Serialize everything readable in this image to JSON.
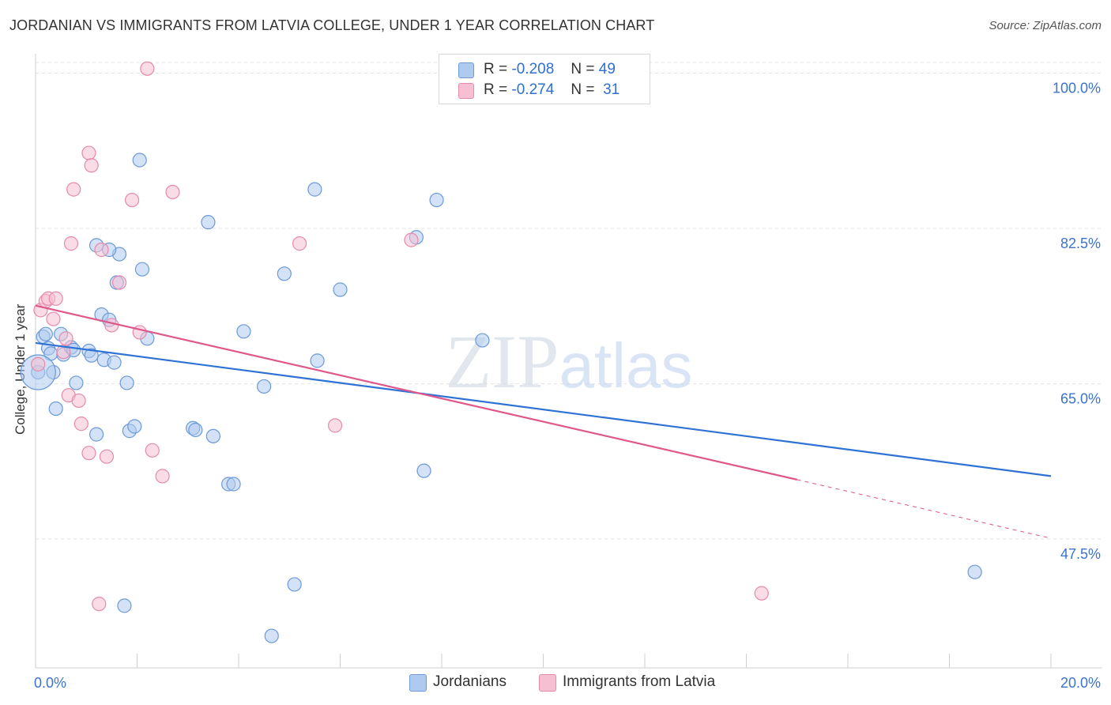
{
  "chart_data": {
    "type": "scatter",
    "title": "JORDANIAN VS IMMIGRANTS FROM LATVIA COLLEGE, UNDER 1 YEAR CORRELATION CHART",
    "source": "Source: ZipAtlas.com",
    "ylabel": "College, Under 1 year",
    "xlabel": "",
    "xlim": [
      0,
      20
    ],
    "ylim": [
      33,
      102
    ],
    "x_tick_labels": [
      "0.0%",
      "20.0%"
    ],
    "y_ticks": [
      47.5,
      65.0,
      82.5,
      100.0
    ],
    "y_tick_labels": [
      "47.5%",
      "65.0%",
      "82.5%",
      "100.0%"
    ],
    "watermark": "ZIPatlas",
    "legend": {
      "rows": [
        {
          "r_label": "R =",
          "r_value": "-0.208",
          "n_label": "N =",
          "n_value": "49"
        },
        {
          "r_label": "R =",
          "r_value": "-0.274",
          "n_label": "N =",
          "n_value": "31"
        }
      ]
    },
    "series": [
      {
        "name": "Jordanians",
        "color": "#aecbef",
        "stroke": "#6c9ad8",
        "line_color": "#2f72d6",
        "trend": {
          "x": [
            0,
            20
          ],
          "y": [
            69.6,
            54.6
          ]
        },
        "points": [
          [
            0.05,
            66.3
          ],
          [
            0.15,
            70.3
          ],
          [
            0.2,
            70.6
          ],
          [
            0.25,
            69.0
          ],
          [
            0.3,
            68.4
          ],
          [
            0.35,
            66.3
          ],
          [
            0.4,
            62.2
          ],
          [
            0.5,
            70.6
          ],
          [
            0.55,
            68.3
          ],
          [
            0.7,
            69.1
          ],
          [
            0.75,
            68.8
          ],
          [
            0.8,
            65.1
          ],
          [
            1.05,
            68.7
          ],
          [
            1.1,
            68.2
          ],
          [
            1.2,
            59.3
          ],
          [
            1.3,
            72.8
          ],
          [
            1.35,
            67.7
          ],
          [
            1.45,
            72.2
          ],
          [
            1.55,
            67.4
          ],
          [
            1.6,
            76.4
          ],
          [
            1.65,
            79.6
          ],
          [
            1.75,
            40.0
          ],
          [
            1.8,
            65.1
          ],
          [
            1.85,
            59.7
          ],
          [
            1.95,
            60.2
          ],
          [
            2.05,
            90.2
          ],
          [
            2.1,
            77.9
          ],
          [
            2.2,
            70.1
          ],
          [
            3.1,
            60.0
          ],
          [
            3.15,
            59.8
          ],
          [
            3.4,
            83.2
          ],
          [
            3.5,
            59.1
          ],
          [
            3.8,
            53.7
          ],
          [
            3.9,
            53.7
          ],
          [
            4.1,
            70.9
          ],
          [
            4.5,
            64.7
          ],
          [
            4.65,
            36.6
          ],
          [
            4.9,
            77.4
          ],
          [
            5.1,
            42.4
          ],
          [
            5.5,
            86.9
          ],
          [
            5.55,
            67.6
          ],
          [
            6.0,
            75.6
          ],
          [
            7.5,
            81.5
          ],
          [
            7.65,
            55.2
          ],
          [
            7.9,
            85.7
          ],
          [
            8.8,
            69.9
          ],
          [
            18.5,
            43.8
          ],
          [
            1.2,
            80.6
          ],
          [
            1.45,
            80.1
          ]
        ],
        "big_point": [
          0.05,
          66.3
        ]
      },
      {
        "name": "Immigrants from Latvia",
        "color": "#f6bfd2",
        "stroke": "#e58aab",
        "line_color": "#e0578a",
        "trend": {
          "x": [
            0,
            15
          ],
          "y": [
            73.8,
            54.2
          ]
        },
        "trend_dashed": {
          "x": [
            15,
            20
          ],
          "y": [
            54.2,
            47.6
          ]
        },
        "points": [
          [
            0.05,
            67.2
          ],
          [
            0.1,
            73.3
          ],
          [
            0.2,
            74.3
          ],
          [
            0.25,
            74.6
          ],
          [
            0.35,
            72.3
          ],
          [
            0.4,
            74.6
          ],
          [
            0.55,
            68.6
          ],
          [
            0.6,
            70.1
          ],
          [
            0.65,
            63.7
          ],
          [
            0.7,
            80.8
          ],
          [
            0.75,
            86.9
          ],
          [
            0.85,
            63.1
          ],
          [
            0.9,
            60.5
          ],
          [
            1.05,
            57.2
          ],
          [
            1.05,
            91.0
          ],
          [
            1.1,
            89.6
          ],
          [
            1.25,
            40.2
          ],
          [
            1.3,
            80.1
          ],
          [
            1.4,
            56.8
          ],
          [
            1.5,
            71.6
          ],
          [
            1.65,
            76.4
          ],
          [
            1.9,
            85.7
          ],
          [
            2.05,
            70.8
          ],
          [
            2.3,
            57.5
          ],
          [
            2.5,
            54.6
          ],
          [
            2.7,
            86.6
          ],
          [
            5.2,
            80.8
          ],
          [
            5.9,
            60.3
          ],
          [
            7.4,
            81.2
          ],
          [
            2.2,
            100.5
          ],
          [
            14.3,
            41.4
          ]
        ]
      }
    ]
  }
}
